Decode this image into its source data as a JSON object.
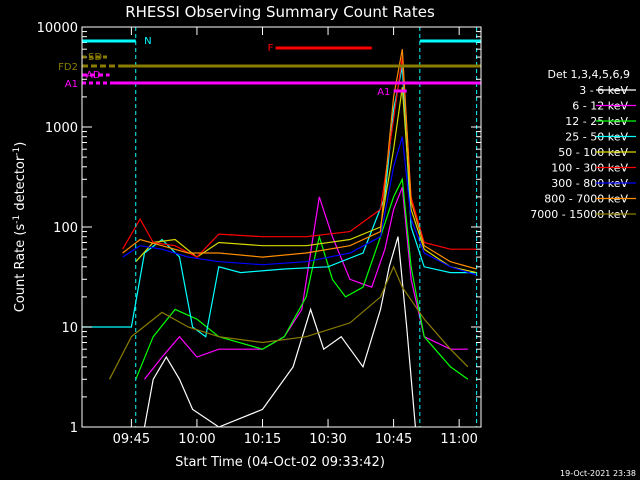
{
  "chart_data": {
    "type": "line",
    "title": "RHESSI Observing Summary Count Rates",
    "xlabel": "Start Time (04-Oct-02 09:33:42)",
    "ylabel": "Count Rate (s",
    "ylabel_sup": "-1",
    "ylabel_tail": " detector",
    "ylabel_sup2": "-1",
    "ylabel_close": ")",
    "y_scale": "log",
    "ylim": [
      1,
      10000
    ],
    "xlim": [
      "09:33:42",
      "11:05"
    ],
    "x_ticks": [
      "09:45",
      "10:00",
      "10:15",
      "10:30",
      "10:45",
      "11:00"
    ],
    "y_ticks": [
      "1",
      "10",
      "100",
      "1000",
      "10000"
    ],
    "timestamp": "19-Oct-2021 23:38",
    "legend": {
      "title": "Det 1,3,4,5,6,9",
      "placement": "right",
      "entries": [
        {
          "label": "3 - 6 keV",
          "color": "#ffffff"
        },
        {
          "label": "6 - 12 keV",
          "color": "#ff00ff"
        },
        {
          "label": "12 - 25 keV",
          "color": "#00ff00"
        },
        {
          "label": "25 - 50 keV",
          "color": "#00ffff"
        },
        {
          "label": "50 - 100 keV",
          "color": "#d7d700"
        },
        {
          "label": "100 - 300 keV",
          "color": "#ff0000"
        },
        {
          "label": "300 - 800 keV",
          "color": "#0000ff"
        },
        {
          "label": "800 - 7000 keV",
          "color": "#ff8c00"
        },
        {
          "label": "7000 - 15000 keV",
          "color": "#8b7d00"
        }
      ]
    },
    "flags": [
      {
        "label": "N",
        "color": "#00ffff"
      },
      {
        "label": "F",
        "color": "#ff0000"
      },
      {
        "label": "SD",
        "color": "#8b7d00"
      },
      {
        "label": "FD2",
        "color": "#8b7d00"
      },
      {
        "label": "AD",
        "color": "#ff00ff"
      },
      {
        "label": "A1",
        "color": "#ff00ff"
      },
      {
        "label": "A1",
        "color": "#ff00ff"
      }
    ],
    "series": [
      {
        "name": "3 - 6 keV",
        "color": "#ffffff",
        "points": [
          [
            "09:48",
            1
          ],
          [
            "09:50",
            3
          ],
          [
            "09:53",
            5
          ],
          [
            "09:56",
            3
          ],
          [
            "09:59",
            1.5
          ],
          [
            "10:05",
            1
          ],
          [
            "10:15",
            1.5
          ],
          [
            "10:22",
            4
          ],
          [
            "10:26",
            15
          ],
          [
            "10:29",
            6
          ],
          [
            "10:33",
            8
          ],
          [
            "10:38",
            4
          ],
          [
            "10:42",
            15
          ],
          [
            "10:44",
            40
          ],
          [
            "10:46",
            80
          ],
          [
            "10:48",
            10
          ],
          [
            "10:50",
            1
          ]
        ]
      },
      {
        "name": "6 - 12 keV",
        "color": "#ff00ff",
        "points": [
          [
            "09:48",
            3
          ],
          [
            "09:52",
            5
          ],
          [
            "09:56",
            8
          ],
          [
            "10:00",
            5
          ],
          [
            "10:05",
            6
          ],
          [
            "10:15",
            6
          ],
          [
            "10:20",
            8
          ],
          [
            "10:24",
            15
          ],
          [
            "10:28",
            200
          ],
          [
            "10:31",
            80
          ],
          [
            "10:35",
            30
          ],
          [
            "10:40",
            25
          ],
          [
            "10:43",
            60
          ],
          [
            "10:45",
            150
          ],
          [
            "10:47",
            250
          ],
          [
            "10:49",
            30
          ],
          [
            "10:52",
            8
          ],
          [
            "10:58",
            6
          ],
          [
            "11:02",
            6
          ]
        ]
      },
      {
        "name": "12 - 25 keV",
        "color": "#00ff00",
        "points": [
          [
            "09:46",
            3
          ],
          [
            "09:50",
            8
          ],
          [
            "09:55",
            15
          ],
          [
            "10:00",
            12
          ],
          [
            "10:05",
            8
          ],
          [
            "10:15",
            6
          ],
          [
            "10:20",
            8
          ],
          [
            "10:25",
            20
          ],
          [
            "10:28",
            80
          ],
          [
            "10:31",
            30
          ],
          [
            "10:34",
            20
          ],
          [
            "10:38",
            25
          ],
          [
            "10:42",
            80
          ],
          [
            "10:45",
            200
          ],
          [
            "10:47",
            300
          ],
          [
            "10:49",
            40
          ],
          [
            "10:52",
            8
          ],
          [
            "10:58",
            4
          ],
          [
            "11:02",
            3
          ]
        ]
      },
      {
        "name": "25 - 50 keV",
        "color": "#00ffff",
        "points": [
          [
            "09:33",
            10
          ],
          [
            "09:45",
            10
          ],
          [
            "09:48",
            55
          ],
          [
            "09:52",
            75
          ],
          [
            "09:56",
            50
          ],
          [
            "09:59",
            10
          ],
          [
            "10:02",
            8
          ],
          [
            "10:05",
            40
          ],
          [
            "10:10",
            35
          ],
          [
            "10:20",
            38
          ],
          [
            "10:30",
            40
          ],
          [
            "10:38",
            55
          ],
          [
            "10:43",
            200
          ],
          [
            "10:45",
            1500
          ],
          [
            "10:47",
            4000
          ],
          [
            "10:49",
            100
          ],
          [
            "10:52",
            40
          ],
          [
            "10:58",
            35
          ],
          [
            "11:04",
            35
          ]
        ]
      },
      {
        "name": "50 - 100 keV",
        "color": "#d7d700",
        "points": [
          [
            "09:46",
            45
          ],
          [
            "09:50",
            70
          ],
          [
            "09:55",
            75
          ],
          [
            "10:00",
            50
          ],
          [
            "10:05",
            70
          ],
          [
            "10:15",
            65
          ],
          [
            "10:25",
            65
          ],
          [
            "10:35",
            75
          ],
          [
            "10:42",
            100
          ],
          [
            "10:45",
            600
          ],
          [
            "10:47",
            2500
          ],
          [
            "10:49",
            150
          ],
          [
            "10:52",
            60
          ],
          [
            "10:58",
            40
          ],
          [
            "11:04",
            35
          ]
        ]
      },
      {
        "name": "100 - 300 keV",
        "color": "#ff0000",
        "points": [
          [
            "09:43",
            60
          ],
          [
            "09:47",
            120
          ],
          [
            "09:50",
            70
          ],
          [
            "09:55",
            65
          ],
          [
            "10:00",
            50
          ],
          [
            "10:05",
            85
          ],
          [
            "10:15",
            80
          ],
          [
            "10:25",
            80
          ],
          [
            "10:35",
            90
          ],
          [
            "10:42",
            150
          ],
          [
            "10:45",
            1200
          ],
          [
            "10:47",
            5000
          ],
          [
            "10:49",
            200
          ],
          [
            "10:52",
            70
          ],
          [
            "10:58",
            60
          ],
          [
            "11:04",
            60
          ]
        ]
      },
      {
        "name": "300 - 800 keV",
        "color": "#0000ff",
        "points": [
          [
            "09:43",
            50
          ],
          [
            "09:47",
            65
          ],
          [
            "09:52",
            60
          ],
          [
            "09:58",
            50
          ],
          [
            "10:05",
            45
          ],
          [
            "10:15",
            42
          ],
          [
            "10:25",
            45
          ],
          [
            "10:35",
            55
          ],
          [
            "10:42",
            80
          ],
          [
            "10:45",
            400
          ],
          [
            "10:47",
            800
          ],
          [
            "10:49",
            120
          ],
          [
            "10:52",
            55
          ],
          [
            "10:58",
            40
          ],
          [
            "11:04",
            33
          ]
        ]
      },
      {
        "name": "800 - 7000 keV",
        "color": "#ff8c00",
        "points": [
          [
            "09:43",
            55
          ],
          [
            "09:47",
            75
          ],
          [
            "09:52",
            65
          ],
          [
            "09:58",
            55
          ],
          [
            "10:05",
            55
          ],
          [
            "10:15",
            50
          ],
          [
            "10:25",
            55
          ],
          [
            "10:35",
            65
          ],
          [
            "10:42",
            90
          ],
          [
            "10:45",
            2000
          ],
          [
            "10:47",
            6000
          ],
          [
            "10:49",
            180
          ],
          [
            "10:52",
            65
          ],
          [
            "10:58",
            45
          ],
          [
            "11:04",
            38
          ]
        ]
      },
      {
        "name": "7000 - 15000 keV",
        "color": "#8b7d00",
        "points": [
          [
            "09:40",
            3
          ],
          [
            "09:45",
            8
          ],
          [
            "09:52",
            14
          ],
          [
            "09:58",
            10
          ],
          [
            "10:05",
            8
          ],
          [
            "10:15",
            7
          ],
          [
            "10:25",
            8
          ],
          [
            "10:35",
            11
          ],
          [
            "10:42",
            20
          ],
          [
            "10:45",
            40
          ],
          [
            "10:47",
            25
          ],
          [
            "10:52",
            12
          ],
          [
            "10:58",
            6
          ],
          [
            "11:02",
            4
          ]
        ]
      }
    ]
  }
}
